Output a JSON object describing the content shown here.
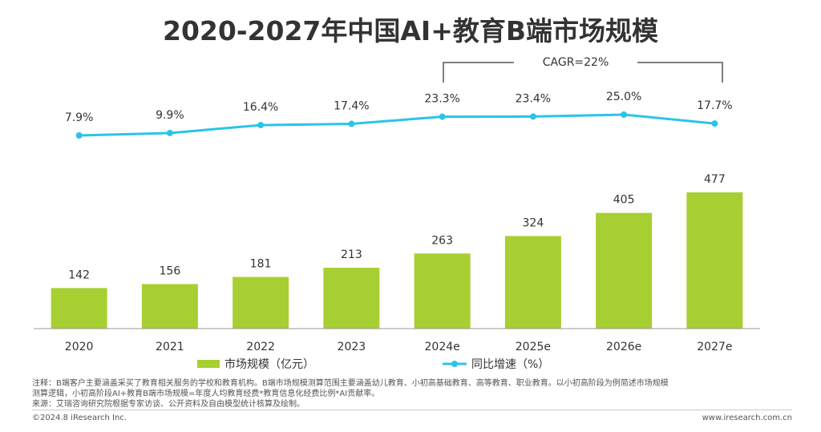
{
  "title": "2020-2027年中国AI+教育B端市场规模",
  "cagr_label": "CAGR=22%",
  "legend": {
    "bar_label": "市场规模（亿元）",
    "line_label": "同比增速（%）"
  },
  "footnotes": {
    "line1": "注释：B端客户主要涵盖采买了教育相关服务的学校和教育机构。B端市场规模测算范围主要涵盖幼儿教育、小初高基础教育、高等教育、职业教育。以小初高阶段为例简述市场规模",
    "line2": "测算逻辑，小初高阶段AI+教育B端市场规模=年度人均教育经费*教育信息化经费比例*AI贡献率。",
    "line3": "来源：艾瑞咨询研究院根据专家访谈、公开资料及自由模型统计核算及绘制。"
  },
  "copyright": "©2024.8 iResearch Inc.",
  "website": "www.iresearch.com.cn",
  "colors": {
    "bar": "#a8cf32",
    "line": "#2bc4e8",
    "title": "#333333"
  },
  "chart_data": {
    "type": "bar",
    "categories": [
      "2020",
      "2021",
      "2022",
      "2023",
      "2024e",
      "2025e",
      "2026e",
      "2027e"
    ],
    "series": [
      {
        "name": "市场规模（亿元）",
        "type": "bar",
        "values": [
          142,
          156,
          181,
          213,
          263,
          324,
          405,
          477
        ],
        "labels": [
          "142",
          "156",
          "181",
          "213",
          "263",
          "324",
          "405",
          "477"
        ]
      },
      {
        "name": "同比增速（%）",
        "type": "line",
        "values": [
          7.9,
          9.9,
          16.4,
          17.4,
          23.3,
          23.4,
          25.0,
          17.7
        ],
        "labels": [
          "7.9%",
          "9.9%",
          "16.4%",
          "17.4%",
          "23.3%",
          "23.4%",
          "25.0%",
          "17.7%"
        ]
      }
    ],
    "bar_ylim": [
      0,
      500
    ],
    "line_ylim": [
      7.9,
      25.0
    ],
    "legend_position": "bottom"
  }
}
